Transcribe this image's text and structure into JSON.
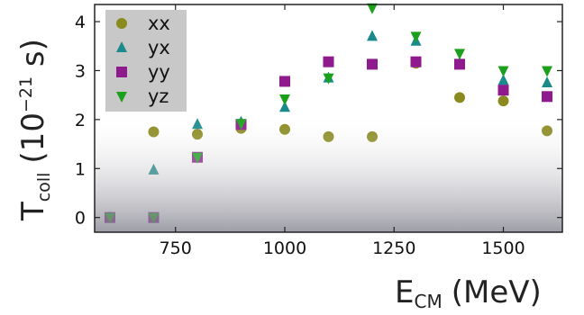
{
  "chart_data": {
    "type": "scatter",
    "xlabel": {
      "main": "E",
      "sub": "CM",
      "unit": "(MeV)"
    },
    "ylabel": {
      "main": "T",
      "sub": "coll",
      "unit_open": "(10",
      "unit_sup": "−21",
      "unit_close": " s)"
    },
    "xlim": [
      565,
      1635
    ],
    "ylim": [
      -0.3,
      4.35
    ],
    "x_ticks": [
      750,
      1000,
      1250,
      1500
    ],
    "x_tick_labels": [
      "750",
      "1000",
      "1250",
      "1500"
    ],
    "y_ticks": [
      0,
      1,
      2,
      3,
      4
    ],
    "y_tick_labels": [
      "0",
      "1",
      "2",
      "3",
      "4"
    ],
    "grid": false,
    "legend_position": "top-left",
    "series": [
      {
        "name": "xx",
        "marker": "circle",
        "color": "#8a8a1e",
        "x": [
          600,
          700,
          800,
          900,
          1000,
          1100,
          1200,
          1300,
          1400,
          1500,
          1600
        ],
        "y": [
          0.0,
          1.75,
          1.7,
          1.82,
          1.8,
          1.65,
          1.65,
          3.15,
          2.45,
          2.38,
          1.77
        ]
      },
      {
        "name": "yx",
        "marker": "triangle-up",
        "color": "#1a8a8a",
        "x": [
          600,
          700,
          800,
          900,
          1000,
          1100,
          1200,
          1300,
          1400,
          1500,
          1600
        ],
        "y": [
          0.0,
          0.97,
          1.9,
          1.95,
          2.25,
          2.85,
          3.7,
          3.6,
          3.15,
          2.8,
          2.75
        ]
      },
      {
        "name": "yy",
        "marker": "square",
        "color": "#8e1a8e",
        "x": [
          600,
          700,
          800,
          900,
          1000,
          1100,
          1200,
          1300,
          1400,
          1500,
          1600
        ],
        "y": [
          0.0,
          0.0,
          1.23,
          1.9,
          2.78,
          3.18,
          3.13,
          3.18,
          3.13,
          2.6,
          2.47
        ]
      },
      {
        "name": "yz",
        "marker": "triangle-down",
        "color": "#1aa01a",
        "x": [
          600,
          700,
          800,
          900,
          1000,
          1100,
          1200,
          1300,
          1400,
          1500,
          1600
        ],
        "y": [
          0.0,
          0.0,
          1.23,
          1.92,
          2.42,
          2.85,
          4.28,
          3.7,
          3.35,
          3.0,
          3.0
        ]
      }
    ],
    "colors": {
      "legend_background": "#c8c8c8",
      "fade_top": "#ffffff",
      "fade_bottom": "#7d7d89"
    }
  }
}
